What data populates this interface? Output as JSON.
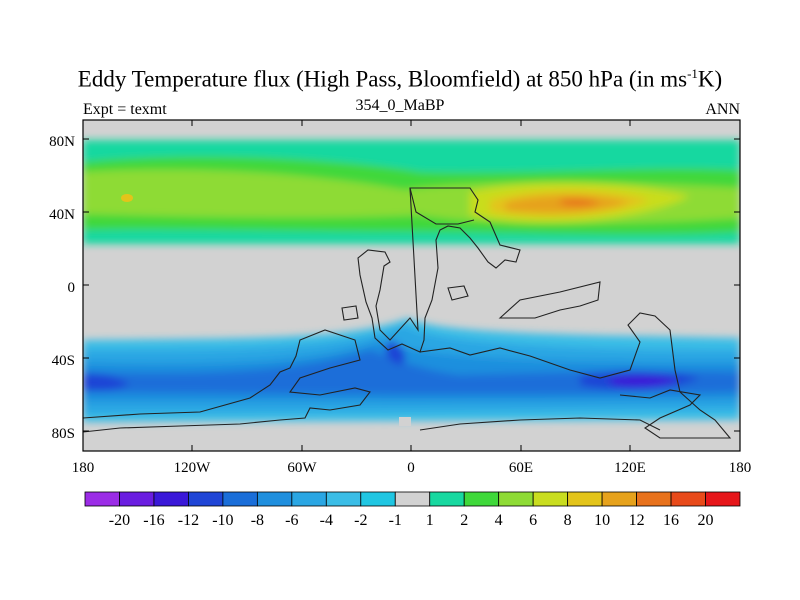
{
  "title": {
    "main": "Eddy Temperature flux (High Pass, Bloomfield) at 850 hPa (in ms",
    "sup": "-1",
    "end": "K)"
  },
  "left_string": "Expt = texmt",
  "center_string": "354_0_MaBP",
  "right_string": "ANN",
  "lat_labels": [
    "80N",
    "40N",
    "0",
    "40S",
    "80S"
  ],
  "lon_labels": [
    "180",
    "120W",
    "60W",
    "0",
    "60E",
    "120E",
    "180"
  ],
  "colorbar": {
    "labels": [
      "-20",
      "-16",
      "-12",
      "-10",
      "-8",
      "-6",
      "-4",
      "-2",
      "-1",
      "1",
      "2",
      "4",
      "6",
      "8",
      "10",
      "12",
      "16",
      "20"
    ],
    "colors": [
      "#9b2ce6",
      "#6a1de0",
      "#3a18d8",
      "#1f45d6",
      "#1a6ed9",
      "#1f8fde",
      "#2aa6e3",
      "#3bbde6",
      "#20c6e2",
      "#d2d2d2",
      "#18d8a0",
      "#3fd83a",
      "#8edb35",
      "#c9dd1f",
      "#e3c41a",
      "#e6a21c",
      "#e8721c",
      "#e84a1a",
      "#e6161a"
    ]
  },
  "colors": {
    "land_grey": "#d2d2d2",
    "background": "#ffffff"
  }
}
